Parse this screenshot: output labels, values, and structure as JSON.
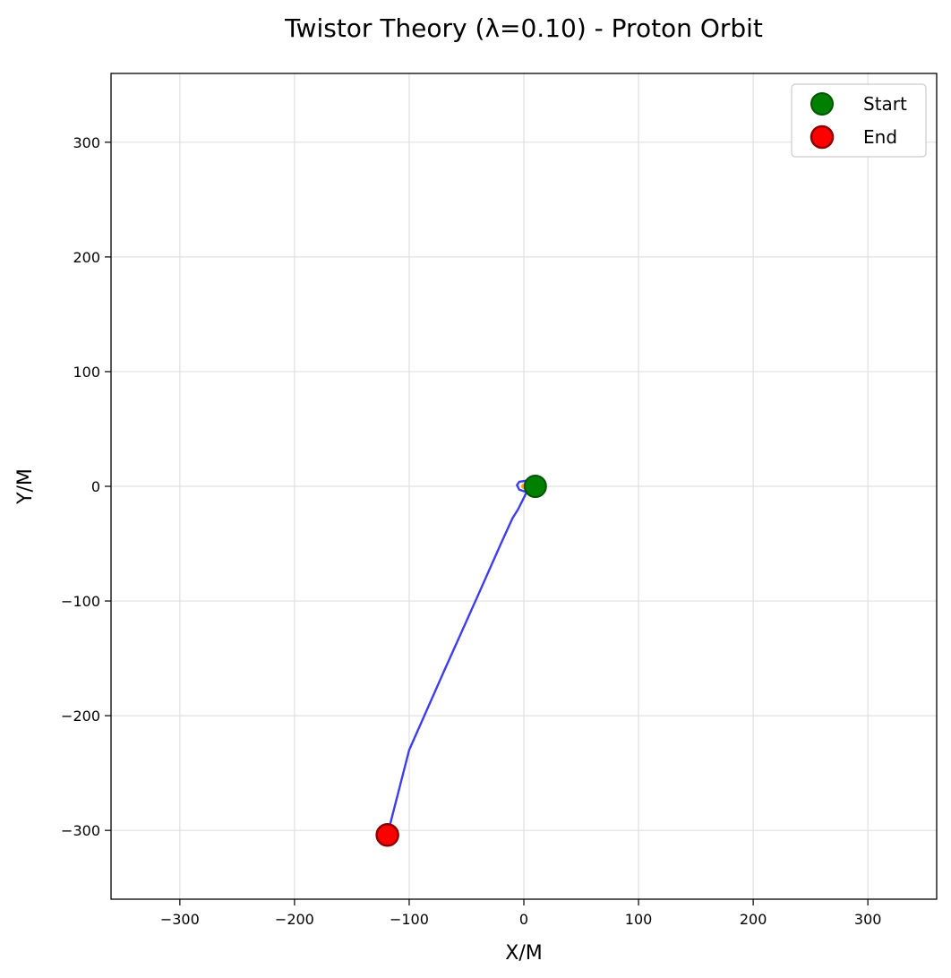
{
  "chart_data": {
    "type": "line",
    "title": "Twistor Theory (λ=0.10) - Proton Orbit",
    "xlabel": "X/M",
    "ylabel": "Y/M",
    "xlim": [
      -360,
      360
    ],
    "ylim": [
      -360,
      360
    ],
    "xticks": [
      -300,
      -200,
      -100,
      0,
      100,
      200,
      300
    ],
    "yticks": [
      -300,
      -200,
      -100,
      0,
      100,
      200,
      300
    ],
    "xtick_labels": [
      "−300",
      "−200",
      "−100",
      "0",
      "100",
      "200",
      "300"
    ],
    "ytick_labels": [
      "−300",
      "−200",
      "−100",
      "0",
      "100",
      "200",
      "300"
    ],
    "grid": true,
    "legend_position": "top-right",
    "trajectory": {
      "color": "#3333ee",
      "x": [
        10,
        3,
        -4,
        -6,
        -4,
        2,
        6,
        8,
        5,
        0,
        -5,
        -10,
        -20,
        -40,
        -70,
        -100,
        -119
      ],
      "y": [
        0,
        5,
        4,
        1,
        -3,
        -5,
        -4,
        -2,
        0,
        -10,
        -20,
        -28,
        -50,
        -95,
        -162,
        -230,
        -304
      ]
    },
    "markers": [
      {
        "label": "Start",
        "x": 10,
        "y": 0,
        "fill": "#008000",
        "stroke": "#005500"
      },
      {
        "label": "End",
        "x": -119,
        "y": -304,
        "fill": "#ff0000",
        "stroke": "#8b0000"
      }
    ],
    "central_body": {
      "x": 0,
      "y": 0,
      "color": "#ffa500"
    }
  }
}
